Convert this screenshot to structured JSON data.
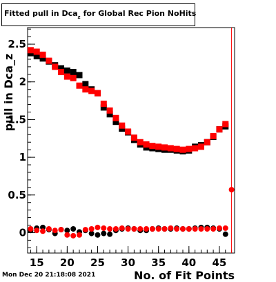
{
  "title_main": "Fitted pull in Dca",
  "title_sub": "z",
  "title_rest": "for Global Rec Pion NoHits",
  "timestamp": "Mon Dec 20 21:18:08 2021",
  "colors": {
    "black": "#000000",
    "red": "#ff0000",
    "frame": "#000000"
  },
  "chart_data": {
    "type": "scatter",
    "title": "Fitted pull in Dca_z for Global Rec Pion NoHits",
    "xlabel": "No. of Fit Points",
    "ylabel": "pull in Dca_z",
    "xlim": [
      13.5,
      47.5
    ],
    "ylim": [
      -0.27,
      2.72
    ],
    "x_ticks": [
      15,
      20,
      25,
      30,
      35,
      40,
      45
    ],
    "y_ticks": [
      0,
      0.5,
      1,
      1.5,
      2,
      2.5
    ],
    "y_tick_labels": [
      "0",
      "0.5",
      "1",
      "1.5",
      "2",
      "2.5"
    ],
    "series": [
      {
        "marker": "square",
        "color": "#000000",
        "x": [
          14,
          15,
          16,
          17,
          18,
          19,
          20,
          21,
          22,
          23,
          24,
          25,
          26,
          27,
          28,
          29,
          30,
          31,
          32,
          33,
          34,
          35,
          36,
          37,
          38,
          39,
          40,
          41,
          42,
          43,
          44,
          45,
          46
        ],
        "y": [
          2.38,
          2.34,
          2.31,
          2.27,
          2.22,
          2.18,
          2.15,
          2.13,
          2.09,
          1.97,
          1.9,
          1.85,
          1.66,
          1.57,
          1.47,
          1.38,
          1.33,
          1.23,
          1.17,
          1.13,
          1.12,
          1.11,
          1.1,
          1.1,
          1.09,
          1.08,
          1.09,
          1.14,
          1.16,
          1.2,
          1.27,
          1.37,
          1.41
        ]
      },
      {
        "marker": "square",
        "color": "#ff0000",
        "x": [
          14,
          15,
          16,
          17,
          18,
          19,
          20,
          21,
          22,
          23,
          24,
          25,
          26,
          27,
          28,
          29,
          30,
          31,
          32,
          33,
          34,
          35,
          36,
          37,
          38,
          39,
          40,
          41,
          42,
          43,
          44,
          45,
          46
        ],
        "y": [
          2.42,
          2.4,
          2.36,
          2.28,
          2.2,
          2.13,
          2.07,
          2.05,
          1.95,
          1.9,
          1.88,
          1.85,
          1.71,
          1.62,
          1.52,
          1.42,
          1.34,
          1.26,
          1.2,
          1.17,
          1.15,
          1.14,
          1.13,
          1.12,
          1.11,
          1.1,
          1.11,
          1.12,
          1.14,
          1.2,
          1.28,
          1.37,
          1.44
        ]
      },
      {
        "marker": "circle",
        "color": "#000000",
        "x": [
          14,
          15,
          16,
          17,
          18,
          19,
          20,
          21,
          22,
          23,
          24,
          25,
          26,
          27,
          28,
          29,
          30,
          31,
          32,
          33,
          34,
          35,
          36,
          37,
          38,
          39,
          40,
          41,
          42,
          43,
          44,
          45,
          46
        ],
        "y": [
          0.03,
          0.06,
          0.07,
          0.04,
          -0.01,
          0.04,
          0.03,
          0.05,
          0.01,
          0.03,
          -0.01,
          -0.03,
          -0.01,
          -0.02,
          0.03,
          0.05,
          0.06,
          0.05,
          0.03,
          0.03,
          0.05,
          0.06,
          0.05,
          0.05,
          0.06,
          0.05,
          0.05,
          0.06,
          0.07,
          0.07,
          0.06,
          0.05,
          -0.02
        ]
      },
      {
        "marker": "circle",
        "color": "#ff0000",
        "x": [
          14,
          15,
          16,
          17,
          18,
          19,
          20,
          21,
          22,
          23,
          24,
          25,
          26,
          27,
          28,
          29,
          30,
          31,
          32,
          33,
          34,
          35,
          36,
          37,
          38,
          39,
          40,
          41,
          42,
          43,
          44,
          45,
          46,
          47
        ],
        "y": [
          0.05,
          0.03,
          0.02,
          0.05,
          0.03,
          0.04,
          -0.03,
          -0.04,
          -0.03,
          0.04,
          0.05,
          0.07,
          0.06,
          0.05,
          0.05,
          0.06,
          0.05,
          0.05,
          0.05,
          0.05,
          0.05,
          0.05,
          0.05,
          0.06,
          0.05,
          0.05,
          0.05,
          0.05,
          0.05,
          0.05,
          0.05,
          0.06,
          0.06,
          0.57
        ]
      }
    ]
  }
}
